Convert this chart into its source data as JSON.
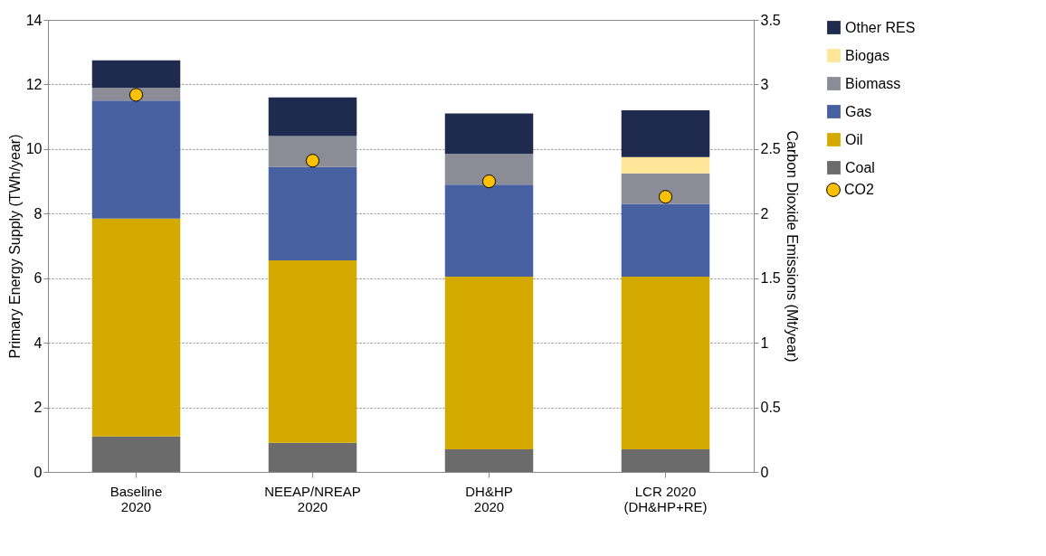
{
  "chart_data": {
    "type": "bar",
    "stacked": true,
    "ylabel": "Primary Energy Supply (TWh/year)",
    "y2label": "Carbon Dioxide Emissions (Mt/year)",
    "categories": [
      "Baseline\n2020",
      "NEEAP/NREAP\n2020",
      "DH&HP\n2020",
      "LCR 2020\n(DH&HP+RE)"
    ],
    "series": [
      {
        "name": "Coal",
        "color": "#6b6b6b",
        "values": [
          1.1,
          0.9,
          0.7,
          0.7
        ]
      },
      {
        "name": "Oil",
        "color": "#d4aa00",
        "values": [
          6.75,
          5.65,
          5.35,
          5.35
        ]
      },
      {
        "name": "Gas",
        "color": "#4660a0",
        "values": [
          3.65,
          2.9,
          2.85,
          2.25
        ]
      },
      {
        "name": "Biomass",
        "color": "#8c8c96",
        "values": [
          0.4,
          0.95,
          0.95,
          0.95
        ]
      },
      {
        "name": "Biogas",
        "color": "#ffe699",
        "values": [
          null,
          null,
          null,
          0.5
        ]
      },
      {
        "name": "Other RES",
        "color": "#1f2a4f",
        "values": [
          0.85,
          1.2,
          1.25,
          1.45
        ]
      },
      {
        "name": "CO2",
        "type": "scatter",
        "axis": "y2",
        "color": "#ffc000",
        "values": [
          2.92,
          2.41,
          2.25,
          2.13
        ]
      }
    ],
    "ylim": [
      0,
      14
    ],
    "yticks": [
      0,
      2,
      4,
      6,
      8,
      10,
      12,
      14
    ],
    "y2lim": [
      0,
      3.5
    ],
    "y2ticks": [
      0,
      0.5,
      1,
      1.5,
      2,
      2.5,
      3,
      3.5
    ],
    "grid": "y",
    "legend": "right",
    "marker": "circle"
  }
}
